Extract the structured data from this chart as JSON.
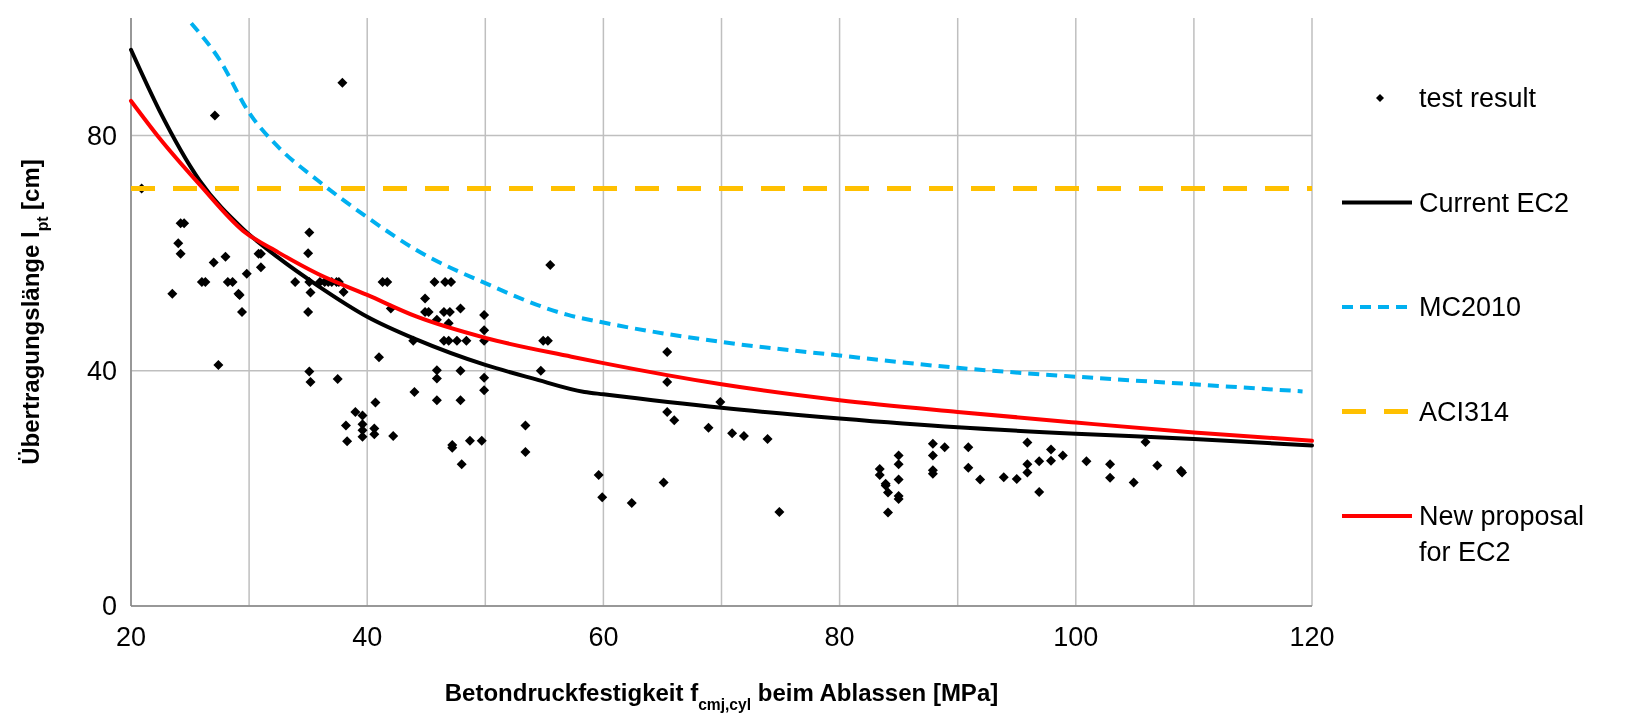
{
  "chart_data": {
    "type": "scatter",
    "xlabel": "Betondruckfestigkeit f$_{cmj,cyl}$ beim Ablassen [MPa]",
    "ylabel": "Übertragungslänge l$_{pt}$  [cm]",
    "xlim": [
      20,
      120
    ],
    "ylim": [
      0,
      100
    ],
    "xticks": [
      20,
      {
        "value": 30,
        "label": null
      },
      40,
      {
        "value": 50,
        "label": null
      },
      60,
      {
        "value": 70,
        "label": null
      },
      80,
      {
        "value": 90,
        "label": null
      },
      100,
      {
        "value": 110,
        "label": null
      },
      120
    ],
    "yticks": [
      0,
      40,
      80
    ],
    "grid": true,
    "legend": "right",
    "series": [
      {
        "name": "test result",
        "marker": "diamond",
        "color": "#000000",
        "x": [
          20.9,
          27.1,
          37.9,
          24.2,
          24.5,
          24.0,
          24.2,
          23.5,
          27.0,
          28.0,
          29.8,
          26.0,
          26.3,
          28.2,
          28.6,
          29.1,
          29.2,
          29.4,
          27.4,
          30.8,
          31.0,
          31.0,
          35.1,
          35.0,
          33.9,
          35.1,
          35.2,
          35.0,
          36.0,
          36.4,
          36.7,
          37.0,
          37.4,
          37.6,
          38.0,
          35.1,
          35.2,
          37.5,
          41.3,
          41.7,
          42.0,
          41.0,
          39.0,
          39.6,
          38.2,
          39.6,
          39.6,
          39.6,
          40.6,
          40.6,
          38.3,
          40.7,
          42.2,
          43.9,
          44.0,
          45.7,
          44.9,
          44.9,
          45.2,
          46.6,
          47.1,
          45.9,
          46.5,
          47.0,
          46.9,
          47.9,
          46.5,
          46.9,
          47.6,
          48.4,
          45.9,
          45.9,
          47.9,
          45.9,
          47.9,
          47.2,
          47.2,
          48.0,
          48.7,
          49.7,
          49.9,
          49.9,
          49.9,
          49.9,
          49.9,
          53.4,
          53.4,
          54.7,
          54.9,
          55.3,
          55.5,
          65.4,
          65.4,
          65.4,
          66.0,
          59.6,
          59.9,
          62.4,
          65.1,
          68.9,
          69.9,
          70.9,
          71.9,
          73.9,
          74.9,
          83.4,
          83.4,
          83.9,
          83.9,
          84.1,
          84.1,
          85.0,
          85.0,
          85.0,
          85.0,
          85.0,
          87.9,
          87.9,
          87.9,
          87.9,
          88.9,
          90.9,
          90.9,
          91.9,
          93.9,
          95.0,
          95.9,
          95.9,
          95.9,
          96.9,
          96.9,
          97.9,
          97.9,
          98.9,
          100.9,
          102.9,
          102.9,
          104.9,
          105.9,
          106.9,
          108.9,
          109.0
        ],
        "values": [
          71.0,
          83.4,
          89.0,
          65.1,
          65.1,
          61.7,
          59.9,
          53.1,
          58.4,
          59.4,
          56.5,
          55.1,
          55.1,
          55.1,
          55.1,
          53.1,
          52.9,
          50.0,
          41.0,
          59.9,
          59.9,
          57.6,
          63.5,
          60.0,
          55.1,
          55.1,
          53.3,
          50.0,
          55.1,
          55.1,
          55.1,
          55.1,
          55.1,
          55.1,
          53.4,
          39.9,
          38.1,
          38.6,
          55.1,
          55.1,
          50.6,
          42.3,
          33.0,
          32.4,
          30.7,
          30.9,
          29.9,
          28.8,
          30.2,
          29.2,
          28.0,
          34.6,
          28.9,
          45.1,
          36.4,
          55.1,
          52.3,
          50.0,
          50.0,
          55.1,
          55.1,
          48.7,
          50.0,
          50.0,
          48.1,
          50.6,
          45.1,
          45.1,
          45.1,
          45.1,
          40.1,
          38.7,
          40.0,
          35.0,
          35.0,
          27.4,
          26.9,
          24.1,
          28.1,
          28.1,
          49.5,
          46.9,
          45.1,
          38.8,
          36.7,
          30.7,
          26.2,
          40.0,
          45.1,
          45.1,
          58.0,
          43.2,
          38.1,
          33.0,
          31.6,
          22.3,
          18.5,
          17.5,
          21.0,
          30.3,
          34.7,
          29.4,
          28.9,
          28.4,
          16.0,
          23.3,
          22.3,
          20.8,
          20.5,
          19.3,
          15.9,
          25.6,
          24.1,
          21.5,
          18.7,
          18.2,
          27.6,
          25.6,
          23.1,
          22.5,
          27.0,
          27.0,
          23.5,
          21.5,
          21.9,
          21.6,
          27.8,
          24.1,
          22.7,
          24.6,
          19.4,
          26.6,
          24.7,
          25.6,
          24.6,
          24.1,
          21.8,
          21.0,
          27.9,
          23.9,
          23.0,
          22.7
        ]
      },
      {
        "name": "Current EC2",
        "type": "line",
        "color": "#000000",
        "line_style": "solid",
        "x": [
          20,
          22.4,
          25.8,
          29.5,
          32.5,
          35.8,
          40,
          44.2,
          50,
          54,
          58.4,
          60,
          70,
          80,
          90,
          100,
          110,
          120
        ],
        "values": [
          94.6,
          84.3,
          72.4,
          64.1,
          59.2,
          54.5,
          49.2,
          45.3,
          41.0,
          38.7,
          36.4,
          36.0,
          33.7,
          31.9,
          30.4,
          29.3,
          28.4,
          27.3
        ]
      },
      {
        "name": "MC2010",
        "type": "line",
        "color": "#00b0f0",
        "line_style": "dashed",
        "x": [
          25.1,
          27.5,
          30,
          32.5,
          35.8,
          40,
          44.2,
          50,
          57,
          60,
          70,
          80,
          90,
          100,
          110,
          119.2
        ],
        "values": [
          99.1,
          92.9,
          83.9,
          78.0,
          72.4,
          66.1,
          60.5,
          54.9,
          49.5,
          48.2,
          44.9,
          42.6,
          40.5,
          39.0,
          37.7,
          36.5
        ]
      },
      {
        "name": "ACI314",
        "type": "line",
        "color": "#ffc000",
        "line_style": "longdash",
        "x": [
          20,
          120
        ],
        "values": [
          71,
          71
        ]
      },
      {
        "name": "New proposal for EC2",
        "type": "line",
        "color": "#ff0000",
        "line_style": "solid",
        "x": [
          20,
          22.4,
          25.8,
          29.5,
          32.5,
          35.8,
          40,
          44.2,
          50,
          57.3,
          60,
          70,
          80,
          90,
          100,
          110,
          120
        ],
        "values": [
          85.9,
          79.6,
          71.7,
          63.8,
          60.1,
          56.5,
          52.9,
          49.2,
          45.6,
          42.4,
          41.3,
          37.7,
          35.0,
          33.0,
          31.2,
          29.5,
          28.1
        ]
      }
    ]
  }
}
